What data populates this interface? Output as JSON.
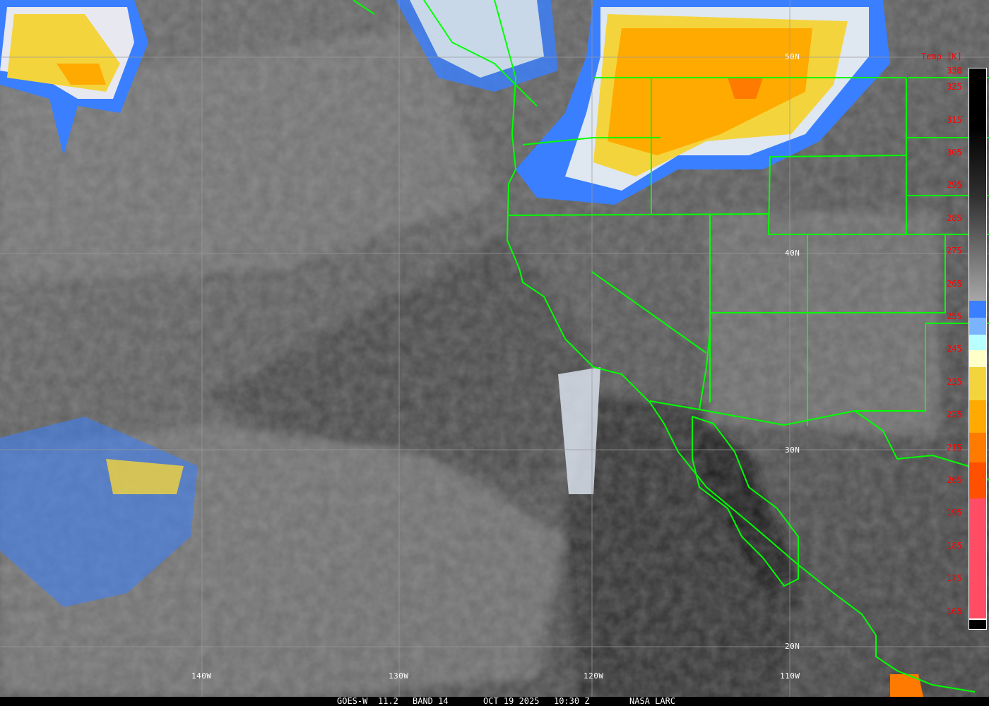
{
  "image": {
    "satellite": "GOES-W",
    "wavelength": "11.2",
    "band": "BAND 14",
    "date": "OCT 19 2025",
    "time": "10:30 Z",
    "credit": "NASA LARC"
  },
  "grid": {
    "longitudes": [
      "140W",
      "130W",
      "120W",
      "110W"
    ],
    "latitudes": [
      "50N",
      "40N",
      "30N",
      "20N"
    ]
  },
  "colorbar": {
    "title": "Temp [K]",
    "ticks": [
      "330",
      "325",
      "315",
      "305",
      "295",
      "285",
      "275",
      "265",
      "255",
      "245",
      "235",
      "225",
      "215",
      "205",
      "195",
      "185",
      "175",
      "165"
    ],
    "colors": {
      "warm_top": "#000000",
      "mid_gray": "#808080",
      "blue": "#3a7fff",
      "light_blue": "#7ab4ff",
      "cyan": "#b8ffff",
      "cream": "#ffffc8",
      "yellow": "#f4d43c",
      "orange": "#ffaa00",
      "dark_orange": "#ff7a00",
      "red_orange": "#ff5000",
      "pink_red": "#ff4d66"
    }
  },
  "overlay_color": "#00ff00"
}
